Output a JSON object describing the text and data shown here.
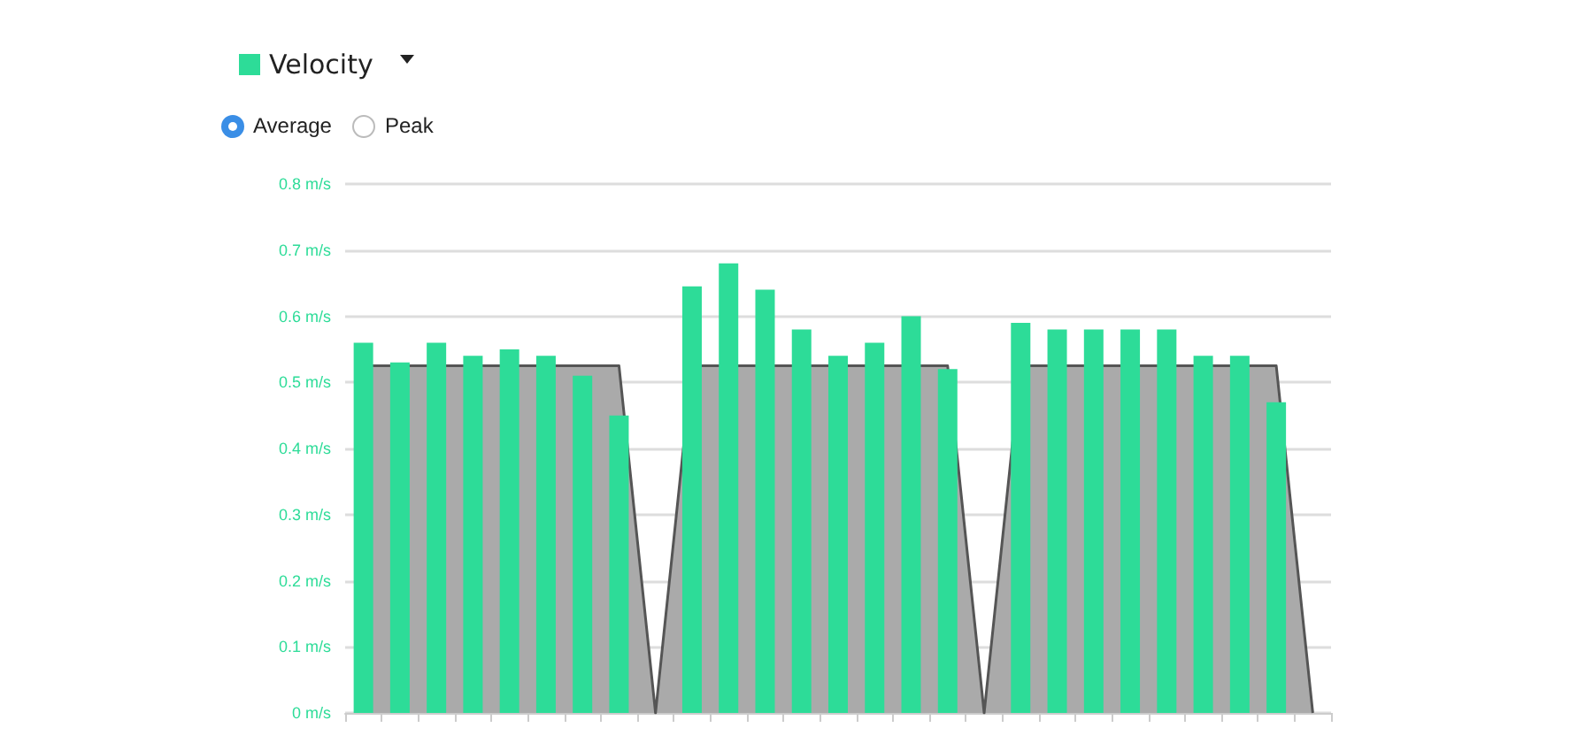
{
  "chart_data": {
    "type": "bar",
    "categories": [
      null,
      null,
      null,
      null,
      null,
      null,
      null,
      null,
      null,
      null,
      null,
      null,
      null,
      null,
      null,
      null,
      null,
      null,
      null,
      null,
      null,
      null,
      null,
      null,
      null,
      null,
      null
    ],
    "series": [
      {
        "name": "Velocity",
        "color": "#2ddc98",
        "values": [
          0.56,
          0.53,
          0.56,
          0.54,
          0.55,
          0.54,
          0.51,
          0.45,
          null,
          0.645,
          0.68,
          0.64,
          0.58,
          0.54,
          0.56,
          0.6,
          0.52,
          null,
          0.59,
          0.58,
          0.58,
          0.58,
          0.58,
          0.54,
          0.54,
          0.47,
          null
        ]
      },
      {
        "type": "area",
        "color": "#aaaaaa",
        "values": [
          0.525,
          0.525,
          0.525,
          0.525,
          0.525,
          0.525,
          0.525,
          0.525,
          0,
          0.525,
          0.525,
          0.525,
          0.525,
          0.525,
          0.525,
          0.525,
          0.525,
          0,
          0.525,
          0.525,
          0.525,
          0.525,
          0.525,
          0.525,
          0.525,
          0.525,
          0
        ]
      }
    ],
    "ylim": [
      0,
      0.8
    ],
    "yticks": [
      {
        "value": 0,
        "label": "0 m/s"
      },
      {
        "value": 0.1,
        "label": "0.1 m/s"
      },
      {
        "value": 0.2,
        "label": "0.2 m/s"
      },
      {
        "value": 0.3,
        "label": "0.3 m/s"
      },
      {
        "value": 0.4,
        "label": "0.4 m/s"
      },
      {
        "value": 0.5,
        "label": "0.5 m/s"
      },
      {
        "value": 0.6,
        "label": "0.6 m/s"
      },
      {
        "value": 0.7,
        "label": "0.7 m/s"
      },
      {
        "value": 0.8,
        "label": "0.8 m/s"
      }
    ],
    "grid": "y",
    "legend": "top left",
    "tick_labels": "y",
    "annotations": [
      "Average",
      "Peak"
    ]
  }
}
